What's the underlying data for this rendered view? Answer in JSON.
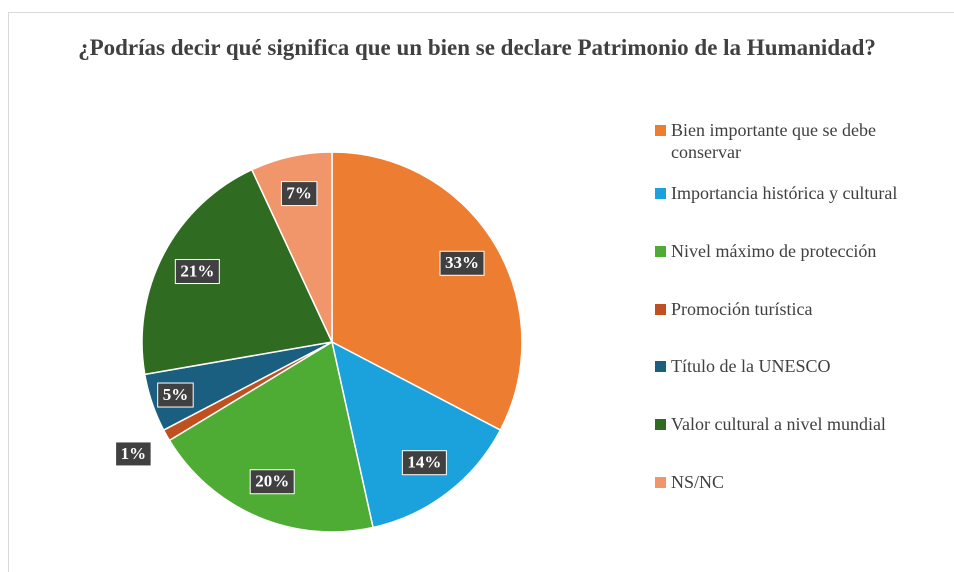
{
  "chart_data": {
    "type": "pie",
    "title": "¿Podrías decir qué significa que un bien se declare Patrimonio de la Humanidad?",
    "categories": [
      "Bien importante que se debe conservar",
      "Importancia histórica y cultural",
      "Nivel máximo de protección",
      "Promoción turística",
      "Título de la UNESCO",
      "Valor cultural a nivel mundial",
      "NS/NC"
    ],
    "values": [
      33,
      14,
      20,
      1,
      5,
      21,
      7
    ],
    "value_labels": [
      "33%",
      "14%",
      "20%",
      "1%",
      "5%",
      "21%",
      "7%"
    ],
    "colors": [
      "#ed7d31",
      "#1ba1dc",
      "#4eab34",
      "#c0501f",
      "#1a5e80",
      "#2f6b20",
      "#f1956a"
    ]
  }
}
